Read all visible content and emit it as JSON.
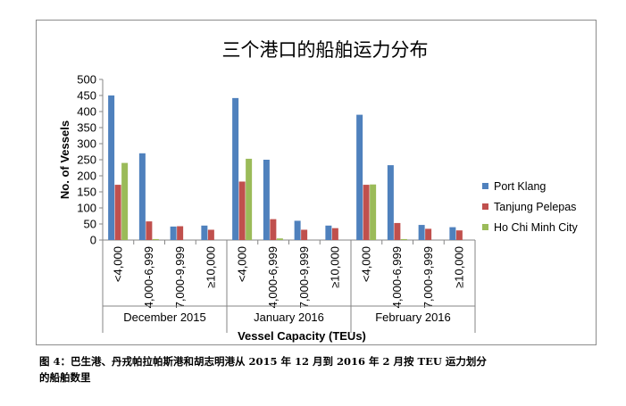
{
  "chart_data": {
    "type": "bar",
    "title": "三个港口的船舶运力分布",
    "xlabel": "Vessel Capacity (TEUs)",
    "ylabel": "No. of Vessels",
    "ylim": [
      0,
      500
    ],
    "yticks": [
      0,
      50,
      100,
      150,
      200,
      250,
      300,
      350,
      400,
      450,
      500
    ],
    "grid": false,
    "legend": "right",
    "groups": [
      "December 2015",
      "January 2016",
      "February 2016"
    ],
    "categories": [
      "<4,000",
      "4,000-6,999",
      "7,000-9,999",
      "≥10,000"
    ],
    "series": [
      {
        "name": "Port Klang",
        "color": "#4f81bd",
        "values": [
          [
            450,
            270,
            42,
            45
          ],
          [
            442,
            250,
            60,
            45
          ],
          [
            390,
            233,
            47,
            40
          ]
        ]
      },
      {
        "name": "Tanjung Pelepas",
        "color": "#c0504d",
        "values": [
          [
            172,
            58,
            43,
            32
          ],
          [
            182,
            65,
            32,
            37
          ],
          [
            172,
            53,
            35,
            30
          ]
        ]
      },
      {
        "name": "Ho Chi Minh City",
        "color": "#9bbb59",
        "values": [
          [
            240,
            3,
            0,
            0
          ],
          [
            253,
            5,
            0,
            0
          ],
          [
            173,
            3,
            0,
            0
          ]
        ]
      }
    ]
  },
  "caption": {
    "line1": "图 4：巴生港、丹戎帕拉帕斯港和胡志明港从 2015 年 12 月到 2016 年 2 月按 TEU 运力划分",
    "line2": "的船舶数里"
  }
}
